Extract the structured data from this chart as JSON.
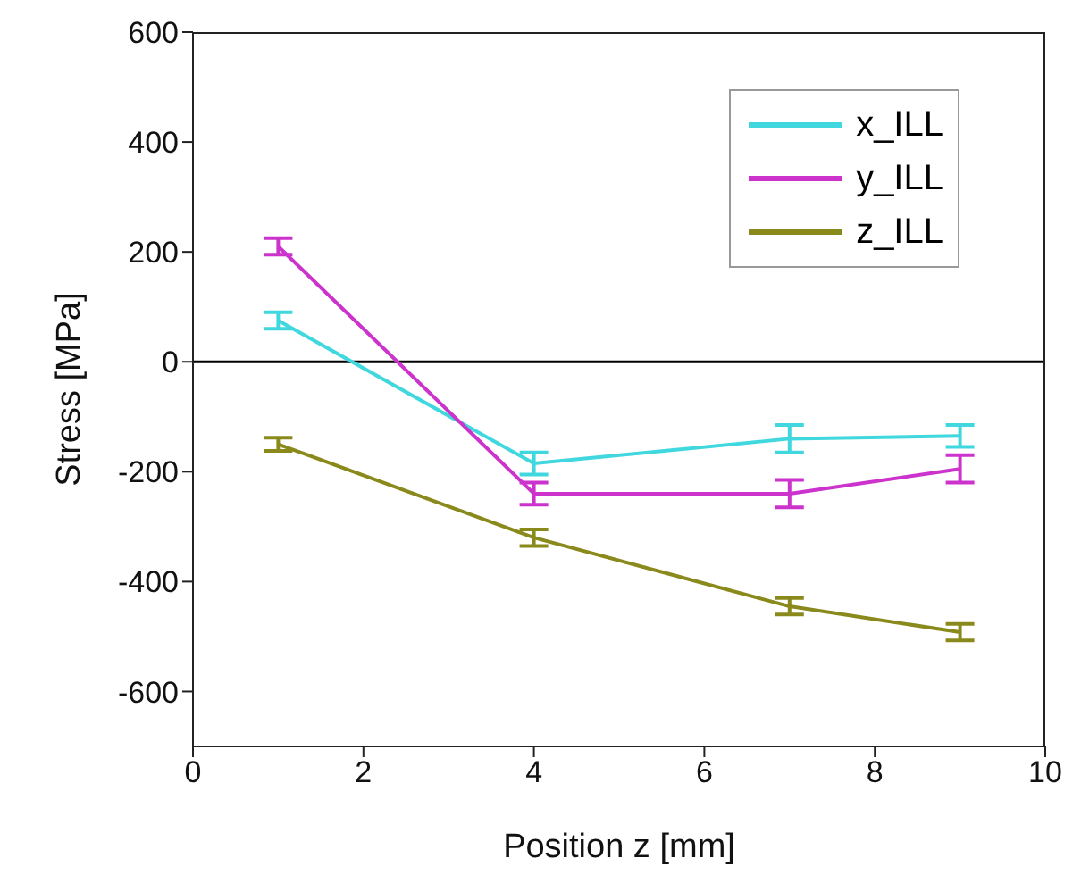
{
  "chart_data": {
    "type": "line",
    "xlabel": "Position z [mm]",
    "ylabel": "Stress [MPa]",
    "x": [
      1,
      4,
      7,
      9
    ],
    "series": [
      {
        "name": "x_ILL",
        "color": "#40d8de",
        "values": [
          75,
          -185,
          -140,
          -135
        ],
        "errors": [
          15,
          20,
          25,
          20
        ]
      },
      {
        "name": "y_ILL",
        "color": "#cc33cc",
        "values": [
          210,
          -240,
          -240,
          -195
        ],
        "errors": [
          15,
          20,
          25,
          25
        ]
      },
      {
        "name": "z_ILL",
        "color": "#8a8a1c",
        "values": [
          -150,
          -320,
          -445,
          -492
        ],
        "errors": [
          12,
          15,
          15,
          15
        ]
      }
    ],
    "xlim": [
      0,
      10
    ],
    "xticks": [
      0,
      2,
      4,
      6,
      8,
      10
    ],
    "ylim": [
      -700,
      600
    ],
    "yticks": [
      -600,
      -400,
      -200,
      0,
      200,
      400,
      600
    ],
    "ref_lines": [
      {
        "axis": "y",
        "value": 0,
        "color": "#000000"
      }
    ],
    "legend": "top right",
    "marker": "none",
    "line_style": "solid",
    "grid": false
  }
}
